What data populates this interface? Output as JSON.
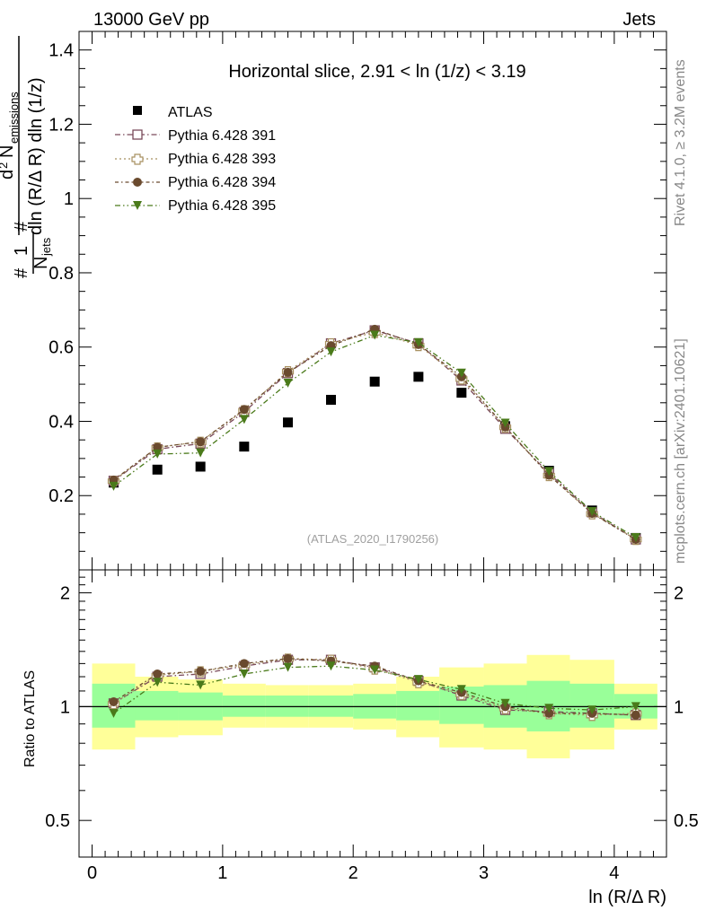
{
  "header": {
    "left": "13000 GeV pp",
    "right": "Jets"
  },
  "side": {
    "rivet": "Rivet 4.1.0, ≥ 3.2M events",
    "mcplots": "mcplots.cern.ch [arXiv:2401.10621]"
  },
  "watermark": "(ATLAS_2020_I1790256)",
  "colors": {
    "atlas": "#000000",
    "p391": "#7a4a5a",
    "p393": "#a89060",
    "p394": "#6a4a2e",
    "p395": "#4a7a1a",
    "band_yellow": "#ffff99",
    "band_green": "#99ff99"
  },
  "chart_data": [
    {
      "type": "scatter",
      "title": "Horizontal slice, 2.91 < ln (1/z) < 3.19",
      "ylabel": {
        "frac_num_d": "d",
        "frac_num_2": "2",
        "frac_num_N": "N",
        "frac_num_sub": "emissions",
        "frac_den": "dln (R/Δ R) dln (1/z)",
        "pre_1": "1",
        "pre_N": "N",
        "pre_sub": "jets",
        "hash": "#"
      },
      "xlabel": "",
      "xlim": [
        -0.1,
        4.4
      ],
      "ylim": [
        0,
        1.45
      ],
      "yticks": [
        "0.2",
        "0.4",
        "0.6",
        "0.8",
        "1",
        "1.2",
        "1.4"
      ],
      "x": [
        0.165,
        0.5,
        0.83,
        1.165,
        1.5,
        1.83,
        2.165,
        2.5,
        2.83,
        3.165,
        3.5,
        3.83,
        4.165
      ],
      "series": [
        {
          "name": "ATLAS",
          "marker": "square-filled",
          "values": [
            0.235,
            0.27,
            0.278,
            0.332,
            0.397,
            0.458,
            0.507,
            0.52,
            0.477,
            0.387,
            0.267,
            0.16,
            0.086
          ]
        },
        {
          "name": "Pythia 6.428 391",
          "marker": "square-open",
          "values": [
            0.24,
            0.325,
            0.34,
            0.425,
            0.53,
            0.61,
            0.645,
            0.61,
            0.51,
            0.38,
            0.26,
            0.155,
            0.082
          ]
        },
        {
          "name": "Pythia 6.428 393",
          "marker": "cross-open",
          "values": [
            0.24,
            0.33,
            0.345,
            0.43,
            0.535,
            0.61,
            0.64,
            0.605,
            0.515,
            0.385,
            0.255,
            0.152,
            0.083
          ]
        },
        {
          "name": "Pythia 6.428 394",
          "marker": "circle-filled",
          "values": [
            0.242,
            0.33,
            0.345,
            0.432,
            0.532,
            0.604,
            0.648,
            0.607,
            0.52,
            0.385,
            0.255,
            0.152,
            0.082
          ]
        },
        {
          "name": "Pythia 6.428 395",
          "marker": "triangle-down-filled",
          "values": [
            0.225,
            0.312,
            0.315,
            0.405,
            0.503,
            0.587,
            0.632,
            0.612,
            0.53,
            0.395,
            0.265,
            0.157,
            0.087
          ]
        }
      ]
    },
    {
      "type": "scatter",
      "title": "",
      "ylabel": "Ratio to ATLAS",
      "xlabel": "ln (R/Δ R)",
      "xlim": [
        -0.1,
        4.4
      ],
      "ylim": [
        0.4,
        2.3
      ],
      "yticks": [
        "0.5",
        "1",
        "2"
      ],
      "xticks": [
        "0",
        "1",
        "2",
        "3",
        "4"
      ],
      "bins": [
        [
          0,
          0.33
        ],
        [
          0.33,
          0.66
        ],
        [
          0.66,
          1.0
        ],
        [
          1.0,
          1.33
        ],
        [
          1.33,
          1.66
        ],
        [
          1.66,
          2.0
        ],
        [
          2.0,
          2.33
        ],
        [
          2.33,
          2.66
        ],
        [
          2.66,
          3.0
        ],
        [
          3.0,
          3.33
        ],
        [
          3.33,
          3.66
        ],
        [
          3.66,
          4.0
        ],
        [
          4.0,
          4.33
        ]
      ],
      "band_yellow": [
        [
          0.77,
          1.3
        ],
        [
          0.83,
          1.2
        ],
        [
          0.84,
          1.18
        ],
        [
          0.88,
          1.15
        ],
        [
          0.88,
          1.14
        ],
        [
          0.88,
          1.14
        ],
        [
          0.87,
          1.15
        ],
        [
          0.83,
          1.2
        ],
        [
          0.78,
          1.27
        ],
        [
          0.77,
          1.3
        ],
        [
          0.73,
          1.37
        ],
        [
          0.77,
          1.33
        ],
        [
          0.87,
          1.15
        ]
      ],
      "band_green": [
        [
          0.88,
          1.15
        ],
        [
          0.92,
          1.1
        ],
        [
          0.92,
          1.09
        ],
        [
          0.94,
          1.07
        ],
        [
          0.94,
          1.07
        ],
        [
          0.94,
          1.07
        ],
        [
          0.93,
          1.08
        ],
        [
          0.92,
          1.1
        ],
        [
          0.9,
          1.13
        ],
        [
          0.88,
          1.14
        ],
        [
          0.86,
          1.17
        ],
        [
          0.88,
          1.15
        ],
        [
          0.93,
          1.08
        ]
      ],
      "x": [
        0.165,
        0.5,
        0.83,
        1.165,
        1.5,
        1.83,
        2.165,
        2.5,
        2.83,
        3.165,
        3.5,
        3.83,
        4.165
      ],
      "series": [
        {
          "name": "Pythia 6.428 391",
          "marker": "square-open",
          "values": [
            1.02,
            1.2,
            1.22,
            1.28,
            1.33,
            1.33,
            1.27,
            1.17,
            1.07,
            0.98,
            0.97,
            0.96,
            0.95
          ]
        },
        {
          "name": "Pythia 6.428 393",
          "marker": "cross-open",
          "values": [
            1.02,
            1.21,
            1.24,
            1.29,
            1.34,
            1.33,
            1.26,
            1.16,
            1.08,
            0.99,
            0.96,
            0.95,
            0.96
          ]
        },
        {
          "name": "Pythia 6.428 394",
          "marker": "circle-filled",
          "values": [
            1.03,
            1.22,
            1.24,
            1.3,
            1.34,
            1.32,
            1.28,
            1.17,
            1.09,
            1.0,
            0.96,
            0.96,
            0.95
          ]
        },
        {
          "name": "Pythia 6.428 395",
          "marker": "triangle-down-filled",
          "values": [
            0.96,
            1.16,
            1.14,
            1.22,
            1.27,
            1.28,
            1.25,
            1.18,
            1.11,
            1.02,
            0.99,
            0.98,
            1.0
          ]
        }
      ]
    }
  ]
}
